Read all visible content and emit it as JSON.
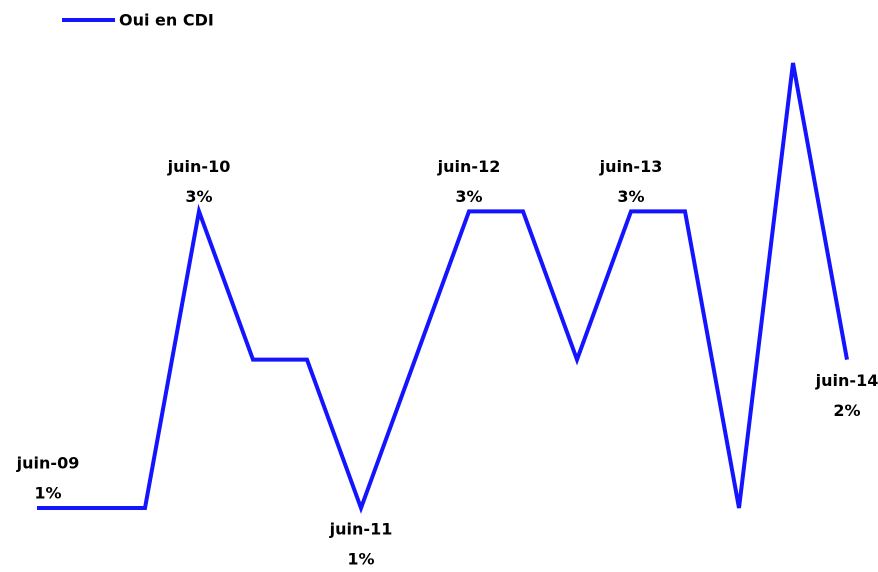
{
  "chart_data": {
    "type": "line",
    "categories": [
      "juin-09",
      null,
      null,
      "juin-10",
      null,
      null,
      "juin-11",
      null,
      "juin-12",
      null,
      null,
      "juin-13",
      null,
      null,
      null,
      "juin-14"
    ],
    "series": [
      {
        "name": "Oui en CDI",
        "color": "#1414ff",
        "values": [
          1,
          1,
          1,
          3,
          2,
          2,
          1,
          2,
          3,
          3,
          2,
          3,
          3,
          1,
          4,
          2
        ],
        "value_labels": [
          "1%",
          null,
          null,
          "3%",
          null,
          null,
          "1%",
          null,
          "3%",
          null,
          null,
          "3%",
          null,
          null,
          null,
          "2%"
        ]
      }
    ],
    "legend": "top-left"
  }
}
